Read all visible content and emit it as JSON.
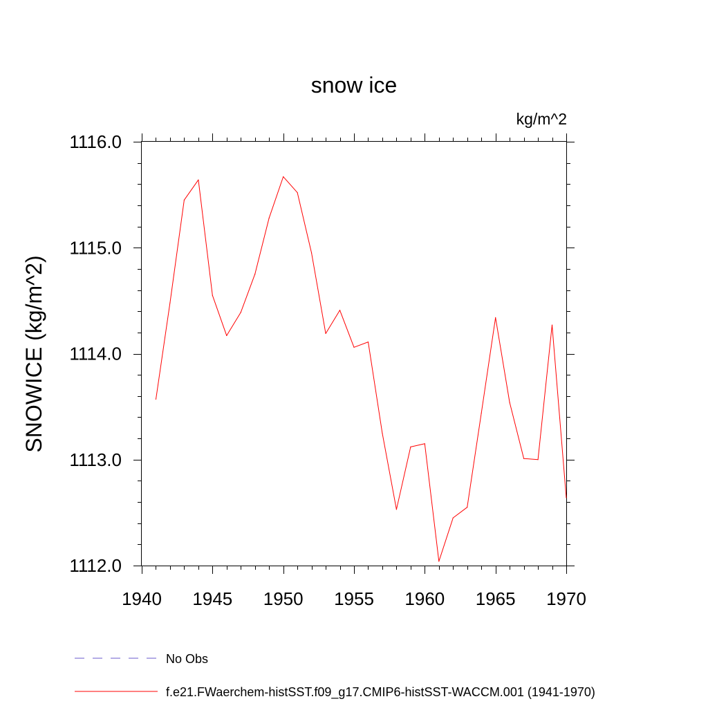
{
  "chart_data": {
    "type": "line",
    "title": "snow ice",
    "units_label": "kg/m^2",
    "ylabel": "SNOWICE  (kg/m^2)",
    "xlabel": "",
    "xlim": [
      1940,
      1970
    ],
    "ylim": [
      1112.0,
      1116.0
    ],
    "x_ticks": [
      1940,
      1945,
      1950,
      1955,
      1960,
      1965,
      1970
    ],
    "x_tick_labels": [
      "1940",
      "1945",
      "1950",
      "1955",
      "1960",
      "1965",
      "1970"
    ],
    "y_ticks": [
      1112.0,
      1113.0,
      1114.0,
      1115.0,
      1116.0
    ],
    "y_tick_labels": [
      "1112.0",
      "1113.0",
      "1114.0",
      "1115.0",
      "1116.0"
    ],
    "grid": false,
    "legend_position": "bottom",
    "series": [
      {
        "name": "f.e21.FWaerchem-histSST.f09_g17.CMIP6-histSST-WACCM.001 (1941-1970)",
        "color": "#ff0000",
        "style": "solid",
        "x": [
          1941,
          1942,
          1943,
          1944,
          1945,
          1946,
          1947,
          1948,
          1949,
          1950,
          1951,
          1952,
          1953,
          1954,
          1955,
          1956,
          1957,
          1958,
          1959,
          1960,
          1961,
          1962,
          1963,
          1964,
          1965,
          1966,
          1967,
          1968,
          1969,
          1970
        ],
        "values": [
          1113.57,
          1114.48,
          1115.45,
          1115.64,
          1114.55,
          1114.17,
          1114.39,
          1114.75,
          1115.28,
          1115.67,
          1115.52,
          1114.95,
          1114.19,
          1114.41,
          1114.06,
          1114.11,
          1113.25,
          1112.53,
          1113.12,
          1113.15,
          1112.04,
          1112.45,
          1112.55,
          1113.44,
          1114.34,
          1113.54,
          1113.01,
          1113.0,
          1114.27,
          1112.64
        ]
      },
      {
        "name": "No Obs",
        "color": "#6a5acd",
        "style": "dashed",
        "x": [],
        "values": []
      }
    ]
  }
}
